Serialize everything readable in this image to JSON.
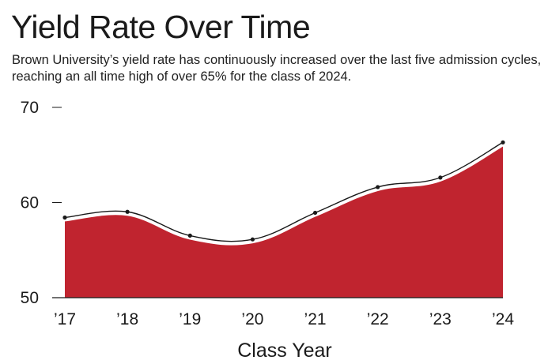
{
  "chart_data": {
    "type": "area",
    "title": "Yield Rate Over Time",
    "subtitle": "Brown University’s yield rate has continuously increased over the last five admission cycles, reaching an all time high of over 65% for the class of 2024.",
    "xlabel": "Class Year",
    "ylabel": "",
    "categories": [
      "’17",
      "’18",
      "’19",
      "’20",
      "’21",
      "’22",
      "’23",
      "’24"
    ],
    "values": [
      58.3,
      58.9,
      56.4,
      56.0,
      58.8,
      61.5,
      62.5,
      66.2
    ],
    "ylim": [
      50,
      70
    ],
    "yticks": [
      50,
      60,
      70
    ],
    "grid": false,
    "legend": "none",
    "colors": {
      "fill": "#c0242f",
      "line": "#1a1a1a",
      "marker": "#1a1a1a"
    }
  }
}
